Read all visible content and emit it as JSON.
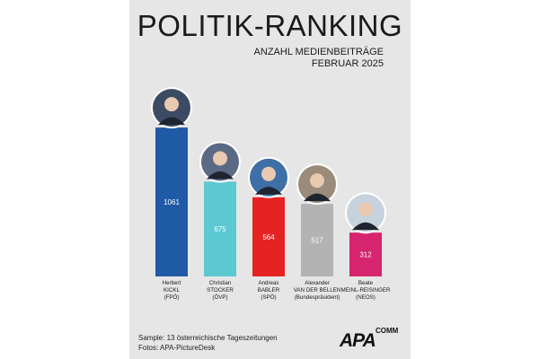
{
  "header": {
    "title": "POLITIK-RANKING",
    "subtitle_line1": "ANZAHL MEDIENBEITRÄGE",
    "subtitle_line2": "FEBRUAR 2025"
  },
  "chart_data": {
    "type": "bar",
    "title": "POLITIK-RANKING",
    "subtitle": "ANZAHL MEDIENBEITRÄGE FEBRUAR 2025",
    "xlabel": "",
    "ylabel": "",
    "ylim": [
      0,
      1100
    ],
    "grid": false,
    "legend": "none",
    "categories": [
      {
        "line1": "Herbert",
        "line2": "KICKL",
        "line3": "(FPÖ)",
        "color": "#1f5aa6",
        "label_color": "#ffffff",
        "avatar_bg": "#3b4b63"
      },
      {
        "line1": "Christian",
        "line2": "STOCKER",
        "line3": "(ÖVP)",
        "color": "#5cc8d1",
        "label_color": "#ffffff",
        "avatar_bg": "#5a6a85"
      },
      {
        "line1": "Andreas",
        "line2": "BABLER",
        "line3": "(SPÖ)",
        "color": "#e52323",
        "label_color": "#ffffff",
        "avatar_bg": "#3e6fa6"
      },
      {
        "line1": "Alexander",
        "line2": "VAN DER BELLEN",
        "line3": "(Bundespräsident)",
        "color": "#b3b3b3",
        "label_color": "#ffffff",
        "avatar_bg": "#9a8b7a"
      },
      {
        "line1": "Beate",
        "line2": "MEINL-REISINGER",
        "line3": "(NEOS)",
        "color": "#d6246e",
        "label_color": "#ffffff",
        "avatar_bg": "#c6d2de"
      }
    ],
    "values": [
      1061,
      675,
      564,
      517,
      312
    ]
  },
  "footer": {
    "sample": "Sample: 13 österreichische Tageszeitungen",
    "photos": "Fotos: APA-PictureDesk",
    "logo_main": "APA",
    "logo_sup": "COMM"
  }
}
